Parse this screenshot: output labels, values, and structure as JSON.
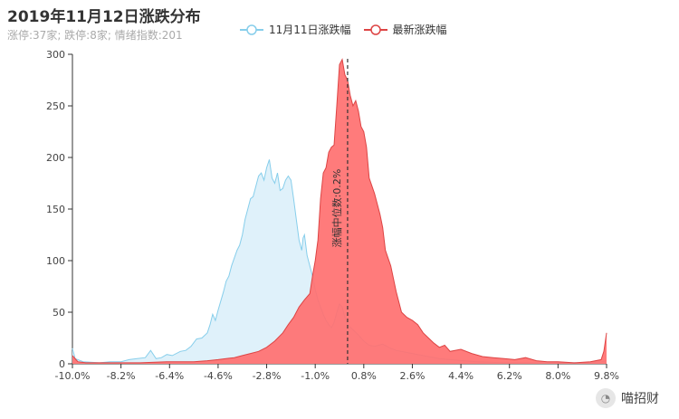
{
  "chart_data": {
    "type": "area",
    "title": "2019年11月12日涨跌分布",
    "subtitle": "涨停:37家; 跌停:8家; 情绪指数:201",
    "xlabel": "",
    "ylabel": "",
    "x_ticks": [
      "-10.0%",
      "-8.2%",
      "-6.4%",
      "-4.6%",
      "-2.8%",
      "-1.0%",
      "0.8%",
      "2.6%",
      "4.4%",
      "6.2%",
      "8.0%",
      "9.8%"
    ],
    "y_ticks": [
      0,
      50,
      100,
      150,
      200,
      250,
      300
    ],
    "xlim": [
      -10.0,
      9.8
    ],
    "ylim": [
      0,
      300
    ],
    "legend_position": "top-center",
    "median": {
      "x": 0.2,
      "label": "涨幅中位数:0.2%"
    },
    "series": [
      {
        "name": "11月11日涨跌幅",
        "color": "#87ceeb",
        "fill": "#dff1fa",
        "points": [
          [
            -10.0,
            15
          ],
          [
            -9.9,
            5
          ],
          [
            -9.6,
            2
          ],
          [
            -9.0,
            1
          ],
          [
            -8.6,
            2
          ],
          [
            -8.2,
            2
          ],
          [
            -7.9,
            4
          ],
          [
            -7.6,
            5
          ],
          [
            -7.3,
            6
          ],
          [
            -7.1,
            13
          ],
          [
            -6.9,
            5
          ],
          [
            -6.7,
            6
          ],
          [
            -6.5,
            9
          ],
          [
            -6.3,
            8
          ],
          [
            -6.0,
            12
          ],
          [
            -5.8,
            13
          ],
          [
            -5.6,
            17
          ],
          [
            -5.4,
            24
          ],
          [
            -5.2,
            25
          ],
          [
            -5.0,
            30
          ],
          [
            -4.9,
            38
          ],
          [
            -4.8,
            48
          ],
          [
            -4.7,
            42
          ],
          [
            -4.6,
            52
          ],
          [
            -4.4,
            70
          ],
          [
            -4.3,
            80
          ],
          [
            -4.2,
            85
          ],
          [
            -4.1,
            95
          ],
          [
            -3.9,
            110
          ],
          [
            -3.8,
            115
          ],
          [
            -3.7,
            125
          ],
          [
            -3.6,
            140
          ],
          [
            -3.4,
            160
          ],
          [
            -3.3,
            162
          ],
          [
            -3.2,
            172
          ],
          [
            -3.1,
            182
          ],
          [
            -3.0,
            185
          ],
          [
            -2.9,
            178
          ],
          [
            -2.8,
            190
          ],
          [
            -2.7,
            198
          ],
          [
            -2.6,
            180
          ],
          [
            -2.5,
            175
          ],
          [
            -2.4,
            185
          ],
          [
            -2.3,
            168
          ],
          [
            -2.2,
            170
          ],
          [
            -2.1,
            178
          ],
          [
            -2.0,
            182
          ],
          [
            -1.9,
            178
          ],
          [
            -1.8,
            160
          ],
          [
            -1.7,
            140
          ],
          [
            -1.6,
            120
          ],
          [
            -1.5,
            110
          ],
          [
            -1.45,
            122
          ],
          [
            -1.4,
            125
          ],
          [
            -1.3,
            105
          ],
          [
            -1.2,
            95
          ],
          [
            -1.1,
            85
          ],
          [
            -1.0,
            72
          ],
          [
            -0.9,
            62
          ],
          [
            -0.8,
            55
          ],
          [
            -0.7,
            48
          ],
          [
            -0.6,
            42
          ],
          [
            -0.5,
            38
          ],
          [
            -0.4,
            35
          ],
          [
            -0.3,
            40
          ],
          [
            -0.2,
            50
          ],
          [
            -0.1,
            58
          ],
          [
            0.0,
            55
          ],
          [
            0.1,
            45
          ],
          [
            0.2,
            38
          ],
          [
            0.4,
            33
          ],
          [
            0.6,
            28
          ],
          [
            0.8,
            22
          ],
          [
            1.0,
            18
          ],
          [
            1.2,
            17
          ],
          [
            1.5,
            19
          ],
          [
            1.8,
            15
          ],
          [
            2.0,
            13
          ],
          [
            2.4,
            11
          ],
          [
            2.8,
            9
          ],
          [
            3.2,
            7
          ],
          [
            3.6,
            5
          ],
          [
            4.0,
            4
          ],
          [
            4.5,
            3
          ],
          [
            5.0,
            2
          ],
          [
            6.0,
            1
          ],
          [
            7.0,
            1
          ],
          [
            8.0,
            1
          ],
          [
            9.0,
            1
          ],
          [
            9.6,
            2
          ],
          [
            9.8,
            3
          ]
        ]
      },
      {
        "name": "最新涨跌幅",
        "color": "#dd4444",
        "fill": "#ff7070",
        "points": [
          [
            -10.0,
            8
          ],
          [
            -9.8,
            2
          ],
          [
            -9.5,
            1
          ],
          [
            -8.5,
            1
          ],
          [
            -7.5,
            1
          ],
          [
            -6.5,
            2
          ],
          [
            -5.5,
            2
          ],
          [
            -5.0,
            3
          ],
          [
            -4.6,
            4
          ],
          [
            -4.3,
            5
          ],
          [
            -4.0,
            6
          ],
          [
            -3.7,
            8
          ],
          [
            -3.4,
            10
          ],
          [
            -3.1,
            12
          ],
          [
            -2.8,
            16
          ],
          [
            -2.5,
            22
          ],
          [
            -2.2,
            30
          ],
          [
            -2.0,
            38
          ],
          [
            -1.8,
            45
          ],
          [
            -1.6,
            55
          ],
          [
            -1.4,
            62
          ],
          [
            -1.2,
            68
          ],
          [
            -1.1,
            85
          ],
          [
            -1.0,
            100
          ],
          [
            -0.9,
            120
          ],
          [
            -0.8,
            160
          ],
          [
            -0.7,
            185
          ],
          [
            -0.6,
            190
          ],
          [
            -0.5,
            205
          ],
          [
            -0.4,
            210
          ],
          [
            -0.3,
            212
          ],
          [
            -0.2,
            250
          ],
          [
            -0.1,
            290
          ],
          [
            0.0,
            295
          ],
          [
            0.1,
            280
          ],
          [
            0.2,
            275
          ],
          [
            0.3,
            260
          ],
          [
            0.4,
            250
          ],
          [
            0.5,
            255
          ],
          [
            0.6,
            245
          ],
          [
            0.7,
            230
          ],
          [
            0.8,
            225
          ],
          [
            0.9,
            210
          ],
          [
            1.0,
            180
          ],
          [
            1.2,
            165
          ],
          [
            1.4,
            145
          ],
          [
            1.5,
            132
          ],
          [
            1.6,
            110
          ],
          [
            1.8,
            95
          ],
          [
            2.0,
            70
          ],
          [
            2.2,
            50
          ],
          [
            2.4,
            45
          ],
          [
            2.6,
            42
          ],
          [
            2.8,
            38
          ],
          [
            3.0,
            30
          ],
          [
            3.2,
            25
          ],
          [
            3.4,
            20
          ],
          [
            3.6,
            16
          ],
          [
            3.8,
            18
          ],
          [
            4.0,
            12
          ],
          [
            4.4,
            14
          ],
          [
            4.8,
            10
          ],
          [
            5.2,
            7
          ],
          [
            5.6,
            6
          ],
          [
            6.0,
            5
          ],
          [
            6.4,
            4
          ],
          [
            6.8,
            6
          ],
          [
            7.2,
            3
          ],
          [
            7.6,
            2
          ],
          [
            8.0,
            2
          ],
          [
            8.6,
            1
          ],
          [
            9.2,
            2
          ],
          [
            9.6,
            4
          ],
          [
            9.7,
            12
          ],
          [
            9.8,
            30
          ]
        ]
      }
    ]
  },
  "watermark": {
    "label": "喵招财"
  }
}
